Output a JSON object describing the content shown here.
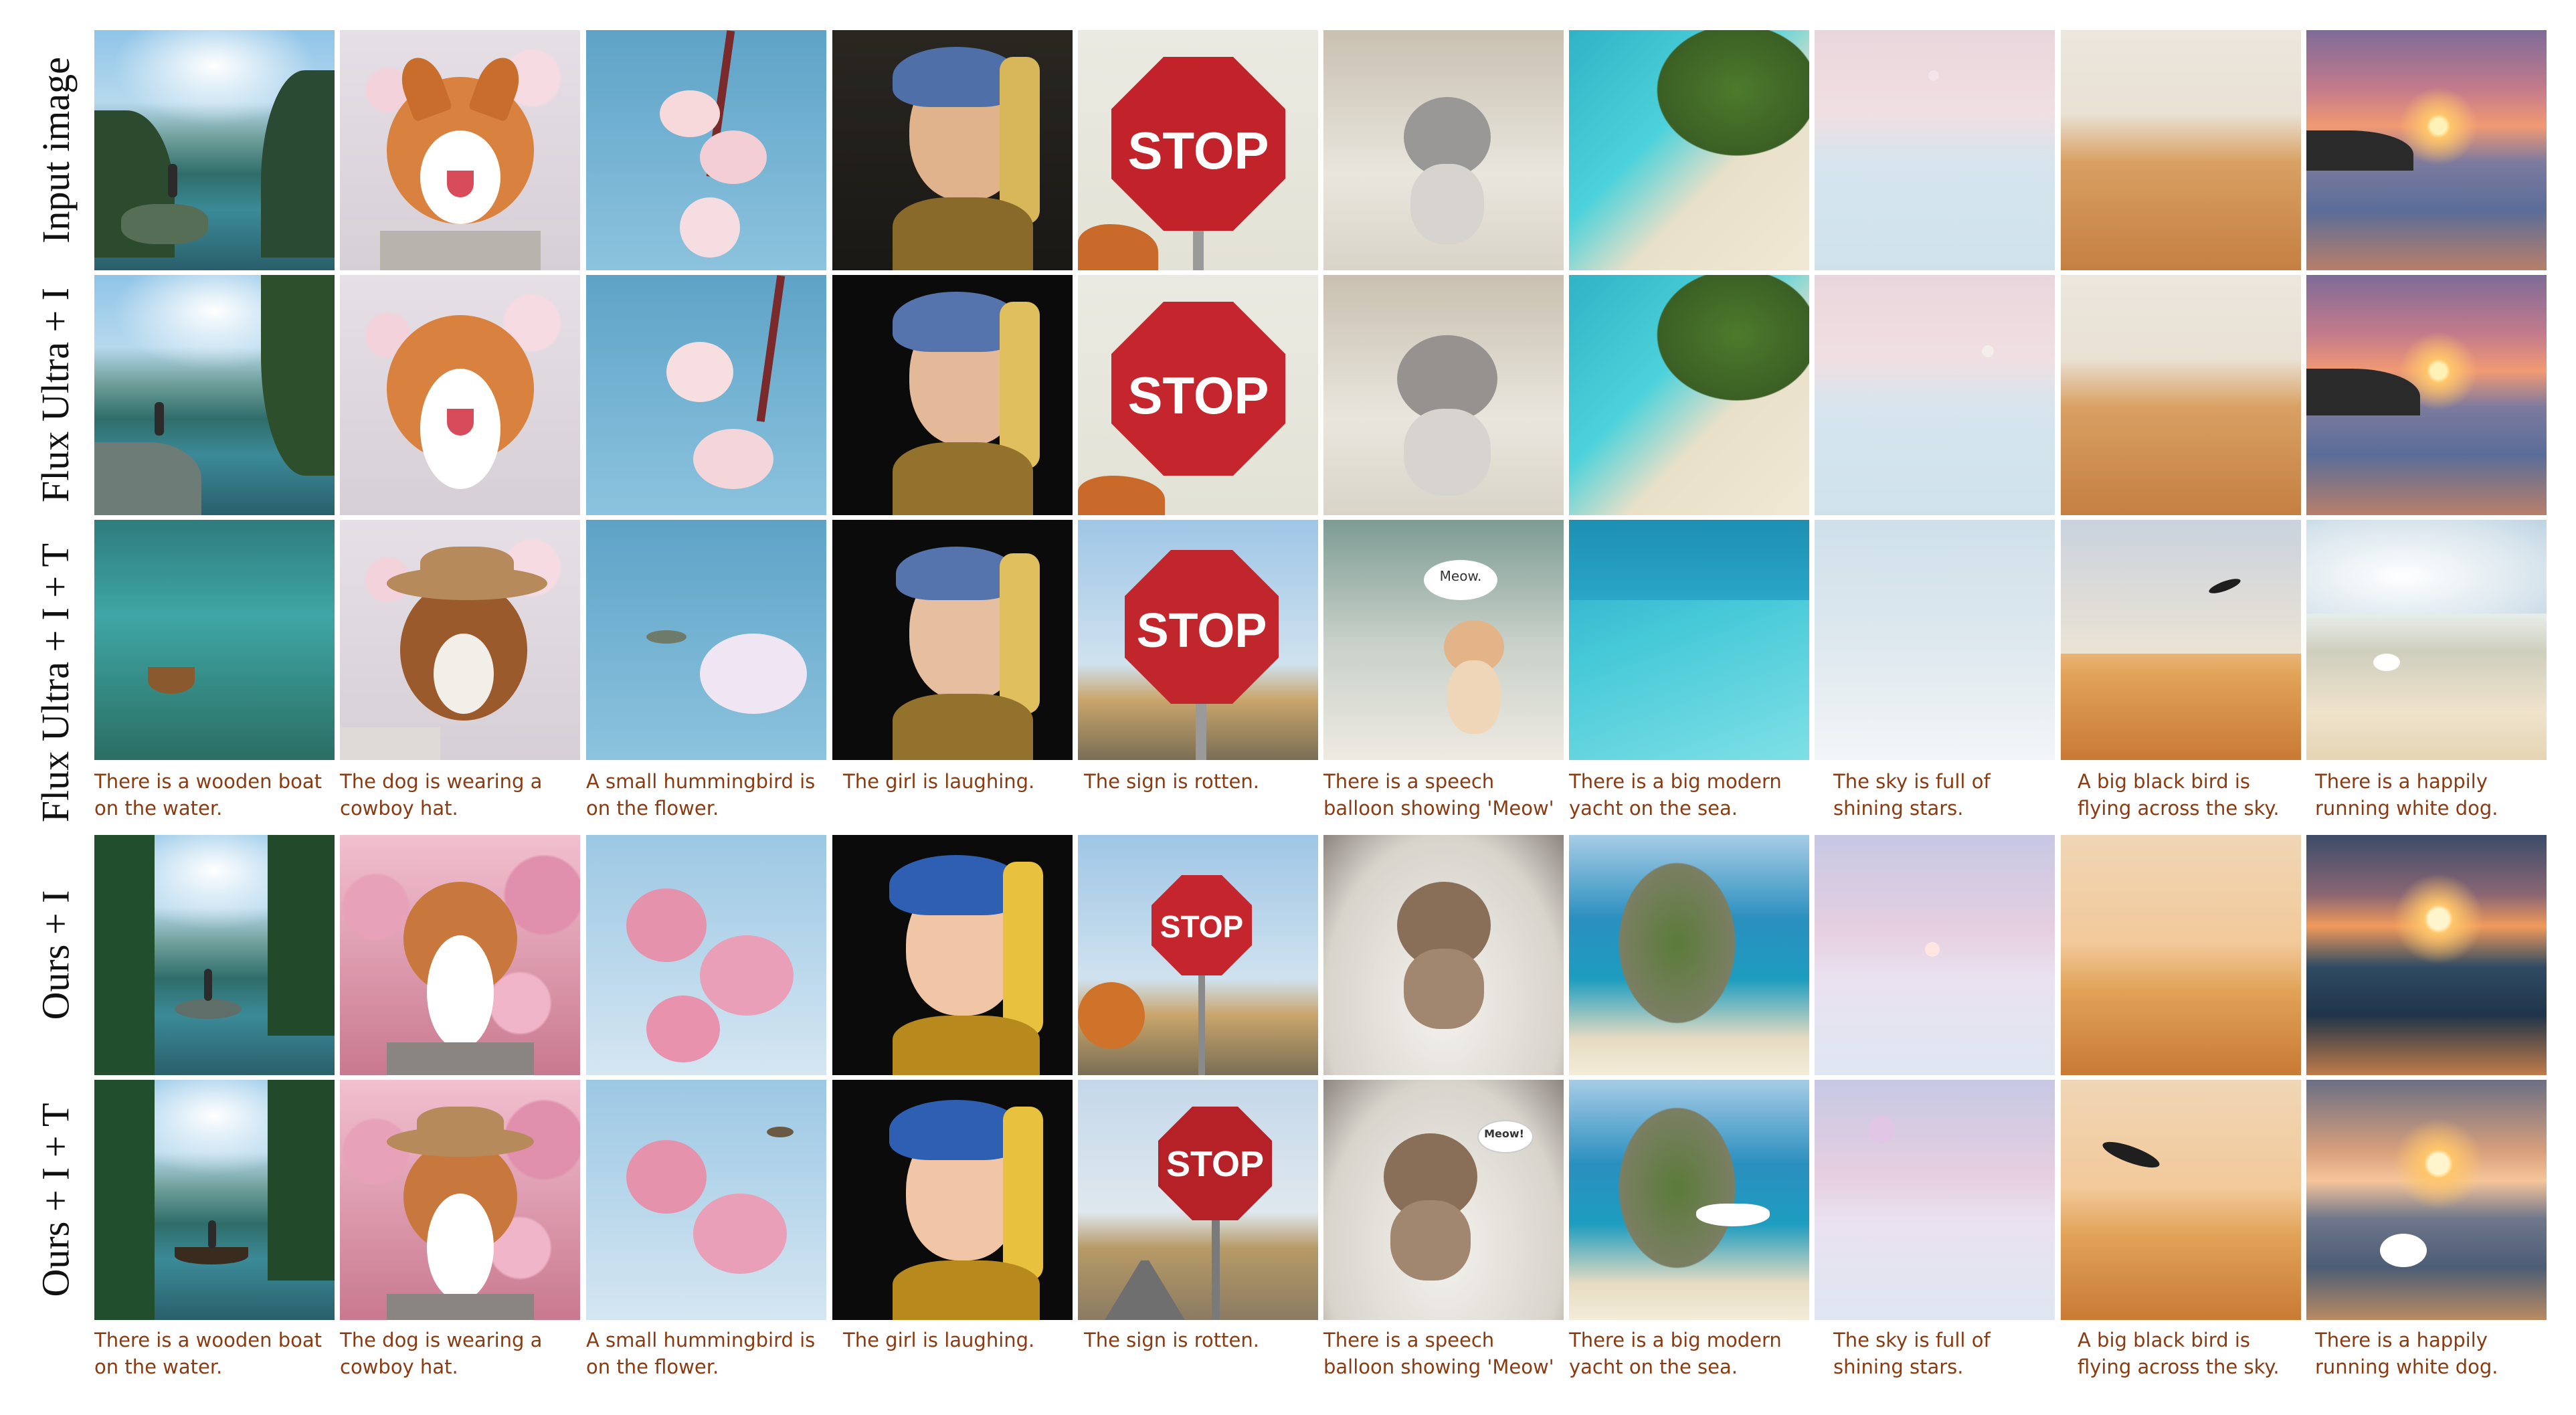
{
  "rows": [
    {
      "label": "Input image"
    },
    {
      "label": "Flux Ultra + I"
    },
    {
      "label": "Flux Ultra + I + T"
    },
    {
      "label": "Ours + I"
    },
    {
      "label": "Ours + I + T"
    }
  ],
  "captions": [
    "There is a wooden boat\non the water.",
    "The dog is wearing a\ncowboy hat.",
    "A small hummingbird is\non the flower.",
    "The girl is laughing.",
    "The sign is rotten.",
    "There is a speech\nballoon showing 'Meow'",
    "There is a big modern\nyacht on the sea.",
    "The sky is full of\nshining stars.",
    "A big black bird is\nflying across the sky.",
    "There is a happily\nrunning white dog."
  ],
  "image_text": {
    "stop": "STOP",
    "meow_small": "Meow.",
    "meow_large": "Meow!"
  }
}
